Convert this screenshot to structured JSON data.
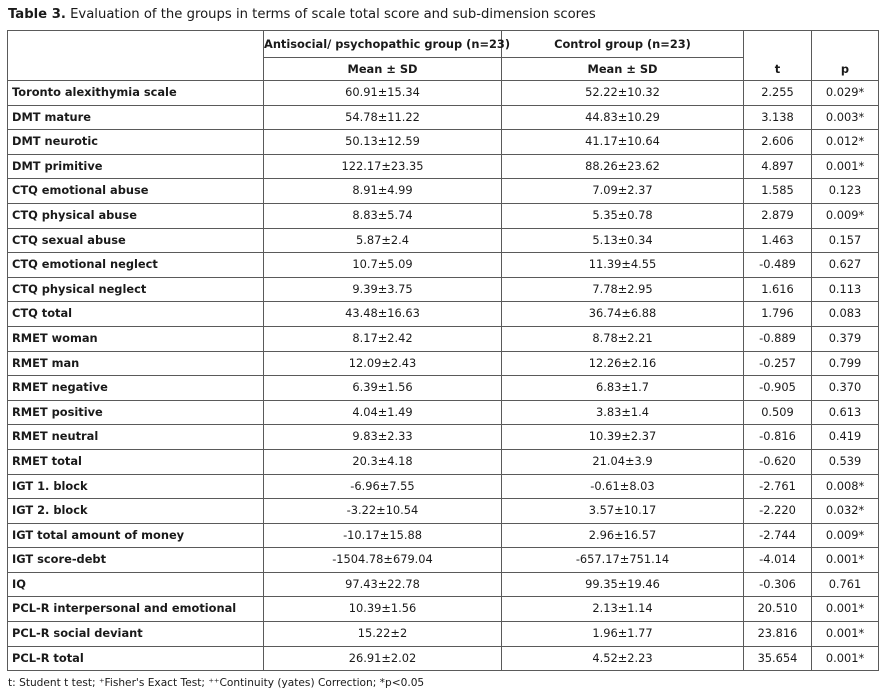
{
  "caption": {
    "label": "Table 3.",
    "text": "Evaluation of the groups in terms of scale total score and sub-dimension scores"
  },
  "headers": {
    "group1": "Antisocial/ psychopathic group (n=23)",
    "group2": "Control group (n=23)",
    "mean_sd_1": "Mean ± SD",
    "mean_sd_2": "Mean ± SD",
    "t": "t",
    "p": "p"
  },
  "rows": [
    {
      "label": "Toronto alexithymia scale",
      "g1": "60.91±15.34",
      "g2": "52.22±10.32",
      "t": "2.255",
      "p": "0.029*"
    },
    {
      "label": "DMT mature",
      "g1": "54.78±11.22",
      "g2": "44.83±10.29",
      "t": "3.138",
      "p": "0.003*"
    },
    {
      "label": "DMT neurotic",
      "g1": "50.13±12.59",
      "g2": "41.17±10.64",
      "t": "2.606",
      "p": "0.012*"
    },
    {
      "label": "DMT primitive",
      "g1": "122.17±23.35",
      "g2": "88.26±23.62",
      "t": "4.897",
      "p": "0.001*"
    },
    {
      "label": "CTQ emotional abuse",
      "g1": "8.91±4.99",
      "g2": "7.09±2.37",
      "t": "1.585",
      "p": "0.123"
    },
    {
      "label": "CTQ physical abuse",
      "g1": "8.83±5.74",
      "g2": "5.35±0.78",
      "t": "2.879",
      "p": "0.009*"
    },
    {
      "label": "CTQ sexual abuse",
      "g1": "5.87±2.4",
      "g2": "5.13±0.34",
      "t": "1.463",
      "p": "0.157"
    },
    {
      "label": "CTQ emotional neglect",
      "g1": "10.7±5.09",
      "g2": "11.39±4.55",
      "t": "-0.489",
      "p": "0.627"
    },
    {
      "label": "CTQ physical neglect",
      "g1": "9.39±3.75",
      "g2": "7.78±2.95",
      "t": "1.616",
      "p": "0.113"
    },
    {
      "label": "CTQ total",
      "g1": "43.48±16.63",
      "g2": "36.74±6.88",
      "t": "1.796",
      "p": "0.083"
    },
    {
      "label": "RMET woman",
      "g1": "8.17±2.42",
      "g2": "8.78±2.21",
      "t": "-0.889",
      "p": "0.379"
    },
    {
      "label": "RMET man",
      "g1": "12.09±2.43",
      "g2": "12.26±2.16",
      "t": "-0.257",
      "p": "0.799"
    },
    {
      "label": "RMET negative",
      "g1": "6.39±1.56",
      "g2": "6.83±1.7",
      "t": "-0.905",
      "p": "0.370"
    },
    {
      "label": "RMET positive",
      "g1": "4.04±1.49",
      "g2": "3.83±1.4",
      "t": "0.509",
      "p": "0.613"
    },
    {
      "label": "RMET neutral",
      "g1": "9.83±2.33",
      "g2": "10.39±2.37",
      "t": "-0.816",
      "p": "0.419"
    },
    {
      "label": "RMET total",
      "g1": "20.3±4.18",
      "g2": "21.04±3.9",
      "t": "-0.620",
      "p": "0.539"
    },
    {
      "label": "IGT 1. block",
      "g1": "-6.96±7.55",
      "g2": "-0.61±8.03",
      "t": "-2.761",
      "p": "0.008*"
    },
    {
      "label": "IGT 2. block",
      "g1": "-3.22±10.54",
      "g2": "3.57±10.17",
      "t": "-2.220",
      "p": "0.032*"
    },
    {
      "label": "IGT total amount of money",
      "g1": "-10.17±15.88",
      "g2": "2.96±16.57",
      "t": "-2.744",
      "p": "0.009*"
    },
    {
      "label": "IGT score-debt",
      "g1": "-1504.78±679.04",
      "g2": "-657.17±751.14",
      "t": "-4.014",
      "p": "0.001*"
    },
    {
      "label": "IQ",
      "g1": "97.43±22.78",
      "g2": "99.35±19.46",
      "t": "-0.306",
      "p": "0.761"
    },
    {
      "label": "PCL-R interpersonal and emotional",
      "g1": "10.39±1.56",
      "g2": "2.13±1.14",
      "t": "20.510",
      "p": "0.001*"
    },
    {
      "label": "PCL-R social deviant",
      "g1": "15.22±2",
      "g2": "1.96±1.77",
      "t": "23.816",
      "p": "0.001*"
    },
    {
      "label": "PCL-R total",
      "g1": "26.91±2.02",
      "g2": "4.52±2.23",
      "t": "35.654",
      "p": "0.001*"
    }
  ],
  "footnote": "t: Student t test; ⁺Fisher's Exact Test; ⁺⁺Continuity (yates) Correction; *p<0.05"
}
